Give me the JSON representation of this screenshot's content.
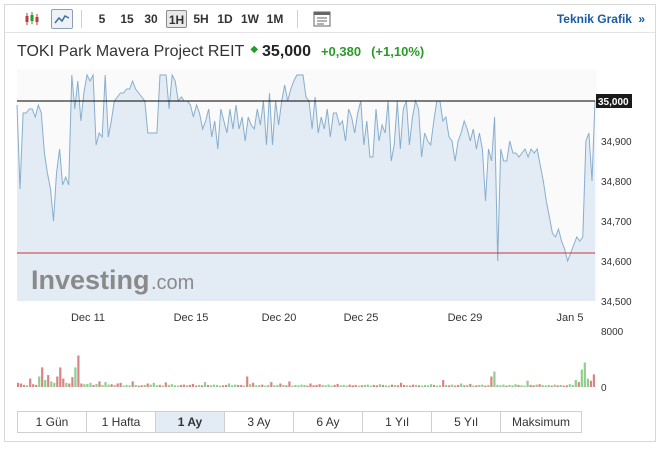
{
  "toolbar": {
    "candles_icon": "candlestick-icon",
    "line_icon": "line-chart-icon",
    "intervals": [
      {
        "label": "5",
        "active": false
      },
      {
        "label": "15",
        "active": false
      },
      {
        "label": "30",
        "active": false
      },
      {
        "label": "1H",
        "active": true
      },
      {
        "label": "5H",
        "active": false
      },
      {
        "label": "1D",
        "active": false
      },
      {
        "label": "1W",
        "active": false
      },
      {
        "label": "1M",
        "active": false
      }
    ],
    "settings_icon": "chart-settings-icon",
    "technical_link": "Teknik Grafik",
    "technical_arrow": "»"
  },
  "instrument": {
    "name": "TOKI Park Mavera Project REIT",
    "price": "35,000",
    "change": "+0,380",
    "change_pct": "(+1,10%)",
    "direction_icon": "up-arrow-icon",
    "up_color": "#2a9a2a"
  },
  "watermark": {
    "brand": "Investing",
    "suffix": ".com"
  },
  "chart_data": [
    {
      "type": "area",
      "title": "",
      "x_ticks": [
        "Dec 11",
        "Dec 15",
        "Dec 20",
        "Dec 25",
        "Dec 29",
        "Jan 5"
      ],
      "y_ticks": [
        "35,000",
        "34,900",
        "34,800",
        "34,700",
        "34,600",
        "34,500"
      ],
      "ylim": [
        34.5,
        35.08
      ],
      "current_value_label": "35,000",
      "current_value": 35.0,
      "reference_value": 34.62,
      "line_color": "#88aecd",
      "fill_color": "#e3ecf5",
      "reference_line_color": "#c23a3a",
      "current_line_color": "#000000",
      "grid": false,
      "series": [
        {
          "values": [
            34.99,
            34.78,
            34.97,
            34.97,
            34.98,
            34.98,
            34.96,
            34.99,
            34.97,
            34.87,
            34.82,
            34.78,
            34.7,
            34.82,
            34.88,
            34.79,
            34.81,
            34.79,
            35.12,
            34.98,
            35.05,
            34.95,
            35.02,
            35.11,
            35.05,
            35.08,
            34.89,
            34.92,
            34.91,
            35.08,
            34.91,
            34.95,
            35.0,
            35.01,
            35.02,
            35.02,
            35.03,
            35.03,
            35.05,
            35.03,
            35.02,
            35.01,
            35.0,
            34.92,
            34.92,
            34.92,
            34.92,
            35.14,
            35.08,
            35.1,
            34.98,
            35.13,
            35.05,
            35.0,
            35.01,
            35.0,
            35.0,
            34.99,
            34.96,
            34.99,
            34.97,
            34.93,
            34.95,
            34.98,
            34.91,
            34.95,
            34.88,
            34.98,
            34.95,
            34.92,
            34.98,
            34.93,
            34.99,
            34.93,
            34.96,
            34.9,
            34.96,
            34.94,
            34.93,
            34.98,
            34.94,
            35.0,
            34.89,
            35.02,
            34.89,
            35.0,
            34.94,
            35.0,
            35.04,
            35.0,
            35.03,
            35.05,
            35.08,
            35.09,
            35.07,
            35.01,
            35.0,
            34.93,
            35.01,
            34.92,
            34.96,
            34.93,
            34.98,
            34.91,
            34.97,
            34.97,
            34.94,
            34.95,
            34.9,
            34.98,
            34.96,
            34.92,
            34.97,
            35.0,
            34.89,
            34.95,
            34.86,
            34.86,
            34.98,
            34.9,
            34.94,
            34.92,
            35.0,
            34.85,
            34.89,
            35.0,
            34.88,
            34.98,
            35.0,
            34.89,
            34.96,
            35.0,
            34.98,
            34.86,
            34.92,
            34.9,
            34.89,
            34.95,
            35.0,
            35.0,
            34.95,
            34.96,
            34.91,
            34.9,
            34.85,
            34.9,
            34.92,
            34.95,
            34.93,
            34.9,
            34.93,
            34.88,
            34.92,
            34.88,
            34.75,
            34.88,
            34.85,
            34.96,
            34.6,
            34.88,
            34.85,
            34.85,
            34.9,
            34.87,
            34.87,
            34.86,
            34.87,
            34.88,
            34.86,
            34.88,
            34.87,
            34.88,
            34.84,
            34.8,
            34.75,
            34.71,
            34.67,
            34.66,
            34.68,
            34.65,
            34.63,
            34.6,
            34.62,
            34.64,
            34.66,
            34.65,
            34.66,
            34.9,
            34.92,
            34.8,
            35.0
          ]
        }
      ]
    },
    {
      "type": "bar",
      "title": "",
      "y_ticks": [
        "8000",
        "0"
      ],
      "ylim": [
        0,
        8000
      ],
      "up_color": "#8fce8f",
      "down_color": "#d98484",
      "grid": false,
      "series": [
        {
          "values": [
            600,
            500,
            300,
            250,
            1200,
            400,
            300,
            1500,
            2800,
            1000,
            1700,
            800,
            600,
            1500,
            2800,
            1200,
            600,
            500,
            1400,
            2800,
            4500,
            500,
            400,
            450,
            600,
            300,
            450,
            800,
            300,
            700,
            350,
            400,
            280,
            500,
            600,
            200,
            300,
            250,
            800,
            300,
            200,
            250,
            300,
            500,
            350,
            600,
            250,
            300,
            200,
            650,
            300,
            400,
            250,
            200,
            300,
            350,
            250,
            300,
            450,
            200,
            300,
            250,
            700,
            300,
            250,
            350,
            300,
            200,
            250,
            300,
            500,
            250,
            350,
            300,
            300,
            200,
            1500,
            400,
            600,
            250,
            300,
            350,
            200,
            300,
            700,
            250,
            300,
            500,
            300,
            250,
            800,
            200,
            300,
            250,
            350,
            300,
            200,
            500,
            250,
            300,
            400,
            300,
            250,
            350,
            200,
            300,
            450,
            250,
            300,
            200,
            350,
            250,
            300,
            200,
            250,
            300,
            350,
            200,
            300,
            250,
            400,
            300,
            250,
            200,
            350,
            300,
            250,
            600,
            300,
            250,
            200,
            350,
            300,
            250,
            200,
            300,
            250,
            400,
            300,
            200,
            250,
            1000,
            300,
            250,
            350,
            200,
            300,
            500,
            250,
            300,
            450,
            200,
            250,
            300,
            350,
            200,
            300,
            1500,
            2200,
            300,
            250,
            350,
            200,
            300,
            250,
            400,
            300,
            250,
            200,
            900,
            300,
            250,
            350,
            400,
            300,
            250,
            300,
            200,
            350,
            250,
            300,
            200,
            250,
            400,
            300,
            1000,
            700,
            2500,
            3500,
            1200,
            900,
            1800
          ]
        }
      ],
      "directions": "0001000101011000100100111010111010011101001011101011110010001010111100111001010110110110100111110000011110011100010111001011010001001011110110101001010101101011110111011100101110101001110111"
    }
  ],
  "ranges": [
    {
      "label": "1 Gün",
      "active": false
    },
    {
      "label": "1 Hafta",
      "active": false
    },
    {
      "label": "1 Ay",
      "active": true
    },
    {
      "label": "3 Ay",
      "active": false
    },
    {
      "label": "6 Ay",
      "active": false
    },
    {
      "label": "1 Yıl",
      "active": false
    },
    {
      "label": "5 Yıl",
      "active": false
    },
    {
      "label": "Maksimum",
      "active": false
    }
  ]
}
